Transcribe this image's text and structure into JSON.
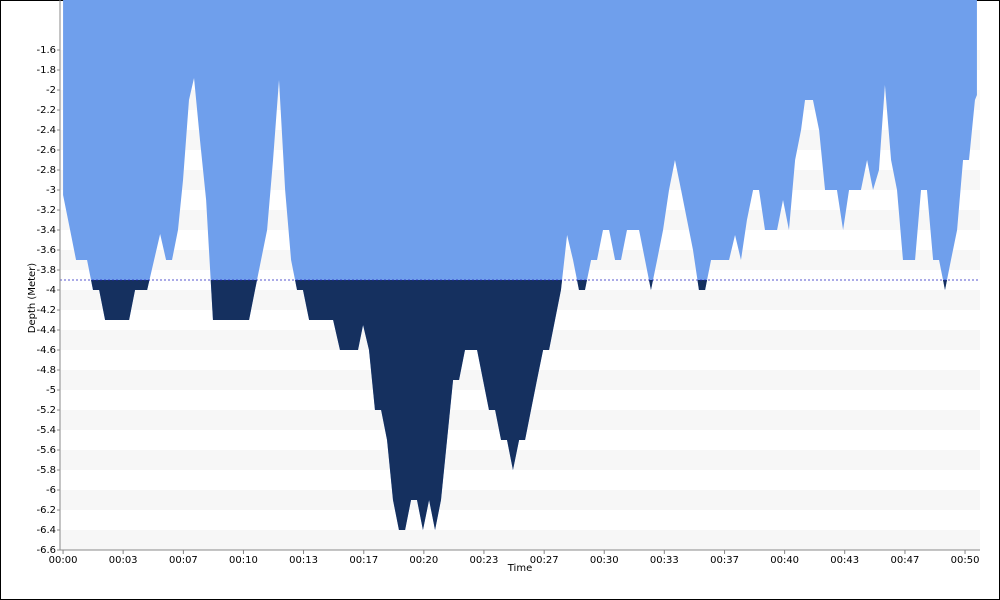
{
  "chart_data": {
    "type": "area",
    "ylabel": "Depth (Meter)",
    "xlabel": "Time",
    "x": [
      0,
      0.39,
      0.72,
      1.33,
      1.66,
      2.0,
      2.33,
      3.66,
      3.99,
      4.66,
      5.38,
      5.71,
      6.04,
      6.37,
      6.65,
      6.98,
      7.26,
      7.59,
      7.93,
      8.31,
      10.31,
      10.64,
      11.31,
      11.64,
      11.97,
      12.31,
      12.64,
      12.97,
      13.3,
      13.64,
      14.97,
      15.35,
      16.35,
      16.63,
      16.96,
      17.29,
      17.63,
      17.96,
      18.29,
      18.62,
      18.96,
      19.29,
      19.62,
      19.95,
      20.29,
      20.62,
      20.95,
      21.62,
      21.95,
      22.28,
      22.95,
      23.28,
      23.61,
      23.95,
      24.28,
      24.61,
      24.94,
      25.28,
      25.61,
      25.94,
      26.27,
      26.61,
      26.94,
      27.6,
      27.94,
      28.27,
      28.6,
      28.93,
      29.27,
      29.6,
      29.93,
      30.27,
      30.6,
      30.93,
      31.26,
      31.93,
      32.59,
      32.93,
      33.26,
      33.59,
      33.92,
      34.26,
      34.59,
      34.92,
      35.25,
      35.59,
      35.92,
      36.92,
      37.25,
      37.58,
      37.91,
      38.25,
      38.58,
      38.91,
      39.58,
      39.91,
      40.24,
      40.58,
      40.91,
      41.13,
      41.57,
      41.91,
      42.24,
      42.9,
      43.24,
      43.57,
      44.23,
      44.57,
      44.9,
      45.23,
      45.56,
      45.9,
      46.23,
      46.56,
      47.23,
      47.56,
      47.89,
      48.23,
      48.56,
      48.89,
      49.22,
      49.56,
      49.89,
      50.22,
      50.55,
      50.66
    ],
    "values": [
      -3.05,
      -3.4,
      -3.7,
      -3.7,
      -4.0,
      -4.0,
      -4.3,
      -4.3,
      -4.0,
      -4.0,
      -3.44,
      -3.7,
      -3.7,
      -3.4,
      -2.9,
      -2.1,
      -1.88,
      -2.5,
      -3.1,
      -4.3,
      -4.3,
      -4.0,
      -3.4,
      -2.7,
      -1.9,
      -3.0,
      -3.7,
      -4.0,
      -4.0,
      -4.3,
      -4.3,
      -4.6,
      -4.6,
      -4.35,
      -4.6,
      -5.2,
      -5.2,
      -5.5,
      -6.1,
      -6.4,
      -6.4,
      -6.1,
      -6.1,
      -6.4,
      -6.1,
      -6.4,
      -6.1,
      -4.9,
      -4.9,
      -4.6,
      -4.6,
      -4.9,
      -5.2,
      -5.2,
      -5.5,
      -5.5,
      -5.8,
      -5.5,
      -5.5,
      -5.2,
      -4.9,
      -4.6,
      -4.6,
      -4.0,
      -3.45,
      -3.7,
      -4.0,
      -4.0,
      -3.7,
      -3.7,
      -3.4,
      -3.4,
      -3.7,
      -3.7,
      -3.4,
      -3.4,
      -4.0,
      -3.7,
      -3.4,
      -3.0,
      -2.7,
      -3.0,
      -3.3,
      -3.6,
      -4.0,
      -4.0,
      -3.7,
      -3.7,
      -3.45,
      -3.7,
      -3.3,
      -3.0,
      -3.0,
      -3.4,
      -3.4,
      -3.1,
      -3.4,
      -2.7,
      -2.4,
      -2.1,
      -2.1,
      -2.4,
      -3.0,
      -3.0,
      -3.4,
      -3.0,
      -3.0,
      -2.7,
      -3.0,
      -2.8,
      -1.95,
      -2.7,
      -3.0,
      -3.7,
      -3.7,
      -3.0,
      -3.0,
      -3.7,
      -3.7,
      -4.0,
      -3.7,
      -3.4,
      -2.7,
      -2.7,
      -2.1,
      -2.05
    ],
    "color": "#6f9fec",
    "below_color": "#15305f",
    "reference_line": -3.9,
    "reference_color": "#2020c0",
    "xlim": [
      -0.17,
      50.83
    ],
    "ylim": [
      -6.6,
      -1.1
    ],
    "xticks": [
      {
        "value": 0,
        "label": "00:00"
      },
      {
        "value": 3.33,
        "label": "00:03"
      },
      {
        "value": 6.67,
        "label": "00:07"
      },
      {
        "value": 10,
        "label": "00:10"
      },
      {
        "value": 13.33,
        "label": "00:13"
      },
      {
        "value": 16.67,
        "label": "00:17"
      },
      {
        "value": 20,
        "label": "00:20"
      },
      {
        "value": 23.33,
        "label": "00:23"
      },
      {
        "value": 26.67,
        "label": "00:27"
      },
      {
        "value": 30,
        "label": "00:30"
      },
      {
        "value": 33.33,
        "label": "00:33"
      },
      {
        "value": 36.67,
        "label": "00:37"
      },
      {
        "value": 40,
        "label": "00:40"
      },
      {
        "value": 43.33,
        "label": "00:43"
      },
      {
        "value": 46.67,
        "label": "00:47"
      },
      {
        "value": 50,
        "label": "00:50"
      }
    ],
    "yticks": [
      -1.6,
      -1.8,
      -2,
      -2.2,
      -2.4,
      -2.6,
      -2.8,
      -3,
      -3.2,
      -3.4,
      -3.6,
      -3.8,
      -4,
      -4.2,
      -4.4,
      -4.6,
      -4.8,
      -5,
      -5.2,
      -5.4,
      -5.6,
      -5.8,
      -6,
      -6.2,
      -6.4,
      -6.6
    ],
    "stripes": true
  }
}
